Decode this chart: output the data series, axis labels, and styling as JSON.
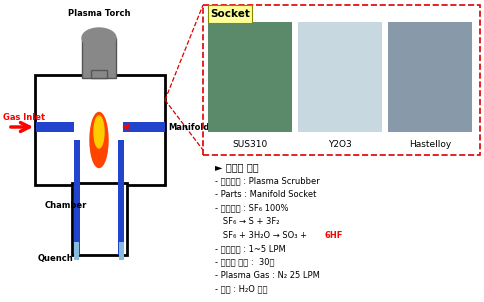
{
  "background_color": "#ffffff",
  "socket_label": "Socket",
  "socket_label_bg": "#ffff99",
  "socket_box_color": "#cc0000",
  "socket_items": [
    "SUS310",
    "Y2O3",
    "Hastelloy"
  ],
  "socket_img_colors": [
    "#5a8a6a",
    "#c8d8e0",
    "#8899aa"
  ],
  "plasma_labels": {
    "plasma_torch": "Plasma Torch",
    "gas_inlet": "Gas Inlet",
    "manifold": "Manifold",
    "chamber": "Chamber",
    "quench": "Quench"
  },
  "test_title": "► 테스트 조건",
  "test_lines": [
    {
      "text": "- 사용장비 : Plasma Scrubber",
      "color": "#000000"
    },
    {
      "text": "- Parts : Manifold Socket",
      "color": "#000000"
    },
    {
      "text": "- 사용가스 : SF₆ 100%",
      "color": "#000000"
    },
    {
      "text": "   SF₆ → S + 3F₂",
      "color": "#000000"
    },
    {
      "text": "   SF₆ + 3H₂O → SO₃ + ",
      "color": "#000000",
      "append": "6HF",
      "append_color": "#ff0000"
    },
    {
      "text": "- 가스유량 : 1~5 LPM",
      "color": "#000000"
    },
    {
      "text": "- 테스트 시간 :  30분",
      "color": "#000000"
    },
    {
      "text": "- Plasma Gas : N₂ 25 LPM",
      "color": "#000000"
    },
    {
      "text": "- 기타 : H₂O 공급",
      "color": "#000000"
    }
  ]
}
